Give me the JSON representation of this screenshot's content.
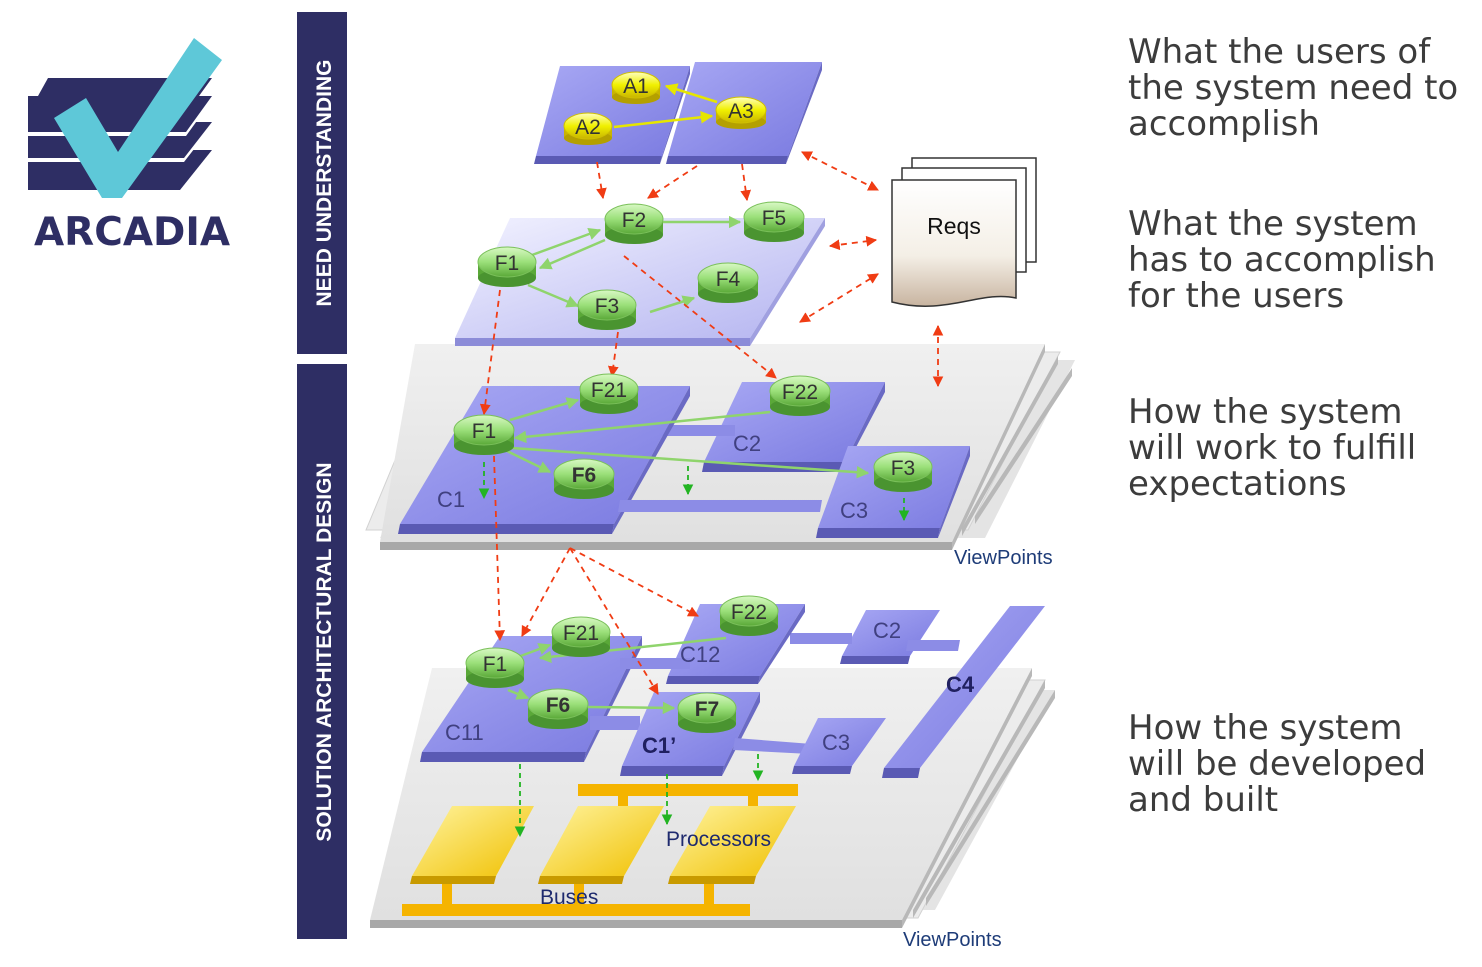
{
  "logo": {
    "text": "ARCADIA"
  },
  "bands": [
    {
      "label": "NEED UNDERSTANDING"
    },
    {
      "label": "SOLUTION ARCHITECTURAL DESIGN"
    }
  ],
  "side_text": [
    {
      "lines": [
        "What the users of",
        "the system need to",
        "accomplish"
      ]
    },
    {
      "lines": [
        "What the system",
        "has to accomplish",
        "for the users"
      ]
    },
    {
      "lines": [
        "How the system",
        "will work to fulfill",
        "expectations"
      ]
    },
    {
      "lines": [
        "How the system",
        "will be developed",
        "and built"
      ]
    }
  ],
  "operational": {
    "activities": [
      "A1",
      "A2",
      "A3"
    ]
  },
  "system": {
    "functions": [
      "F1",
      "F2",
      "F3",
      "F4",
      "F5"
    ]
  },
  "requirements": {
    "label": "Reqs"
  },
  "logical": {
    "components": [
      "C1",
      "C2",
      "C3"
    ],
    "functions": [
      "F1",
      "F21",
      "F22",
      "F6",
      "F3"
    ],
    "viewpoints_label": "ViewPoints"
  },
  "physical": {
    "components": [
      "C11",
      "C12",
      "C2",
      "C1’",
      "C3",
      "C4"
    ],
    "functions": [
      "F1",
      "F21",
      "F22",
      "F6",
      "F7"
    ],
    "processors_label": "Processors",
    "buses_label": "Buses",
    "viewpoints_label": "ViewPoints"
  },
  "colors": {
    "navy": "#2e2e64",
    "component": "#8c8ce6",
    "component_dark": "#5a5ab4",
    "function": "#9be07a",
    "activity": "#f0f000",
    "hardware": "#f5c800",
    "bus": "#f5b400",
    "trace_arrow": "#f03c14",
    "allocation_arrow": "#22b422",
    "viewpoint_label": "#1e3c78"
  }
}
